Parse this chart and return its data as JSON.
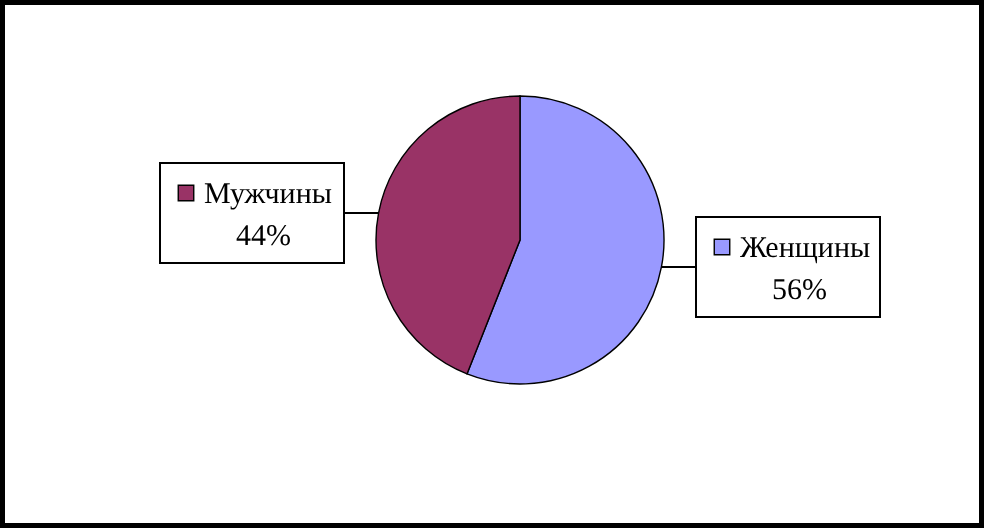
{
  "chart_data": {
    "type": "pie",
    "categories": [
      "Женщины",
      "Мужчины"
    ],
    "values": [
      56,
      44
    ],
    "colors": [
      "#9999ff",
      "#993366"
    ],
    "value_labels": [
      "56%",
      "44%"
    ],
    "data_labels": true,
    "legend": "right"
  }
}
